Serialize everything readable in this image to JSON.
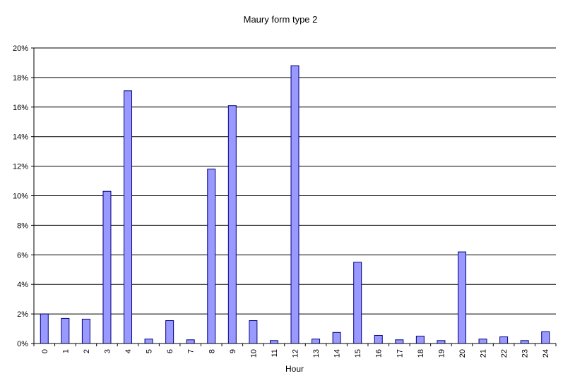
{
  "chart_data": {
    "type": "bar",
    "title": "Maury form type 2",
    "xlabel": "Hour",
    "ylabel": "",
    "ylim": [
      0,
      20
    ],
    "y_unit": "%",
    "y_ticks": [
      "0%",
      "2%",
      "4%",
      "6%",
      "8%",
      "10%",
      "12%",
      "14%",
      "16%",
      "18%",
      "20%"
    ],
    "categories": [
      "0",
      "1",
      "2",
      "3",
      "4",
      "5",
      "6",
      "7",
      "8",
      "9",
      "10",
      "11",
      "12",
      "13",
      "14",
      "15",
      "16",
      "17",
      "18",
      "19",
      "20",
      "21",
      "22",
      "23",
      "24"
    ],
    "values": [
      2.0,
      1.7,
      1.65,
      10.3,
      17.1,
      0.3,
      1.55,
      0.25,
      11.8,
      16.1,
      1.55,
      0.2,
      18.8,
      0.3,
      0.75,
      5.5,
      0.55,
      0.25,
      0.5,
      0.2,
      6.2,
      0.3,
      0.45,
      0.2,
      0.8
    ],
    "grid": true,
    "legend": "none",
    "bar_color": "#9999ff",
    "bar_stroke": "#000080"
  }
}
